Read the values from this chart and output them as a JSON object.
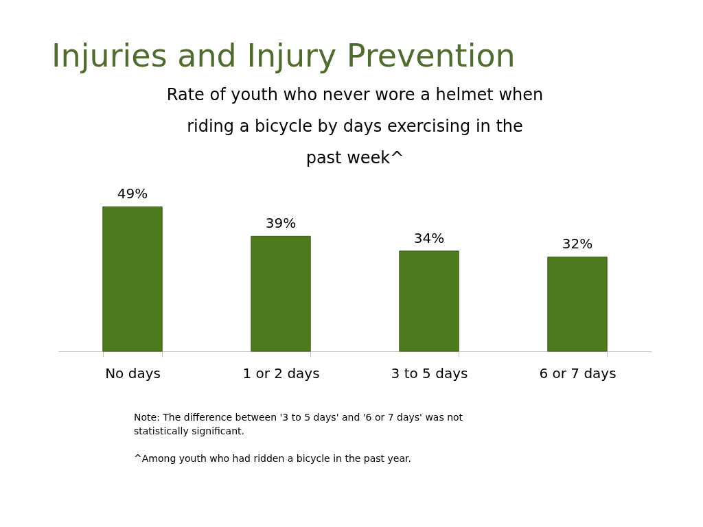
{
  "chart_data": {
    "type": "bar",
    "title": "Injuries and Injury Prevention",
    "subtitle": "Rate of youth who never wore a helmet when riding a bicycle by days exercising in the past week^",
    "categories": [
      "No days",
      "1 or 2 days",
      "3 to 5 days",
      "6 or 7 days"
    ],
    "values": [
      49,
      39,
      34,
      32
    ],
    "value_labels": [
      "49%",
      "39%",
      "34%",
      "32%"
    ],
    "color": "#4e7a1e",
    "grid": false,
    "tick_labels": "x",
    "annotations": [
      "Note: The difference between '3 to 5 days' and '6 or 7 days' was not statistically significant.",
      "^Among youth who had ridden a bicycle in the past year."
    ]
  }
}
